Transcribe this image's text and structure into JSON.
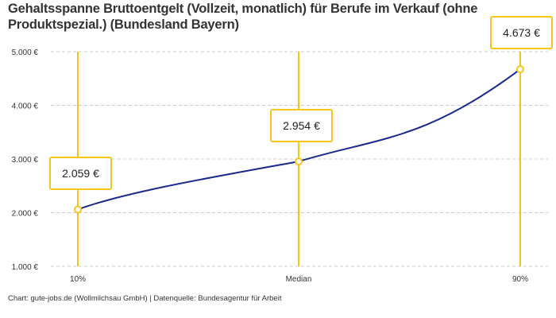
{
  "chart_data": {
    "type": "line",
    "title": "Gehaltsspanne Bruttoentgelt (Vollzeit, monatlich) für Berufe im Verkauf (ohne Produktspezial.) (Bundesland Bayern)",
    "categories": [
      "10%",
      "Median",
      "90%"
    ],
    "values": [
      2059,
      2954,
      4673
    ],
    "data_labels": [
      "2.059 €",
      "2.954 €",
      "4.673 €"
    ],
    "yticks": [
      1000,
      2000,
      3000,
      4000,
      5000
    ],
    "ytick_labels": [
      "1.000 €",
      "2.000 €",
      "3.000 €",
      "4.000 €",
      "5.000 €"
    ],
    "ylim": [
      1000,
      5000
    ],
    "grid": "horizontal dashed",
    "line_color": "#1a2a8c",
    "marker_color": "#f5c518",
    "footer": "Chart: gute-jobs.de (Wollmilchsau GmbH) | Datenquelle: Bundesagentur für Arbeit"
  }
}
